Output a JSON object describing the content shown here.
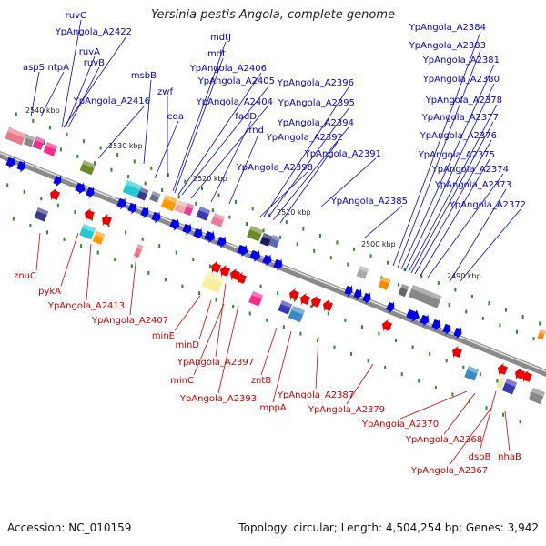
{
  "title": "Yersinia pestis Angola, complete genome",
  "accession": "Accession: NC_010159",
  "summary": "Topology: circular; Length: 4,504,254 bp; Genes: 3,942",
  "colors": {
    "forward_label": "#0000cc",
    "reverse_label": "#cc0000",
    "arrow_blue": "#0000ee",
    "arrow_red": "#ee0000",
    "backbone": "#8a8a8a"
  },
  "tick_labels": [
    "2540 kbp",
    "2530 kbp",
    "2520 kbp",
    "2510 kbp",
    "2500 kbp",
    "2490 kbp"
  ],
  "forward_genes": [
    "ruvC",
    "YpAngola_A2422",
    "ruvA",
    "ruvB",
    "aspS",
    "ntpA",
    "msbB",
    "YpAngola_A2416",
    "zwf",
    "eda",
    "mdtJ",
    "mdtI",
    "YpAngola_A2406",
    "YpAngola_A2405",
    "YpAngola_A2404",
    "fadD",
    "rnd",
    "YpAngola_A2396",
    "YpAngola_A2395",
    "YpAngola_A2394",
    "YpAngola_A2392",
    "YpAngola_A2391",
    "YpAngola_A2398",
    "YpAngola_A2385",
    "YpAngola_A2384",
    "YpAngola_A2383",
    "YpAngola_A2381",
    "YpAngola_A2380",
    "YpAngola_A2378",
    "YpAngola_A2377",
    "YpAngola_A2376",
    "YpAngola_A2375",
    "YpAngola_A2374",
    "YpAngola_A2373",
    "YpAngola_A2372"
  ],
  "reverse_genes": [
    "znuC",
    "pykA",
    "YpAngola_A2413",
    "YpAngola_A2407",
    "minE",
    "minD",
    "YpAngola_A2397",
    "minC",
    "YpAngola_A2393",
    "zntB",
    "mppA",
    "YpAngola_A2387",
    "YpAngola_A2379",
    "YpAngola_A2370",
    "YpAngola_A2368",
    "YpAngola_A2367",
    "dsbB",
    "nhaB"
  ]
}
